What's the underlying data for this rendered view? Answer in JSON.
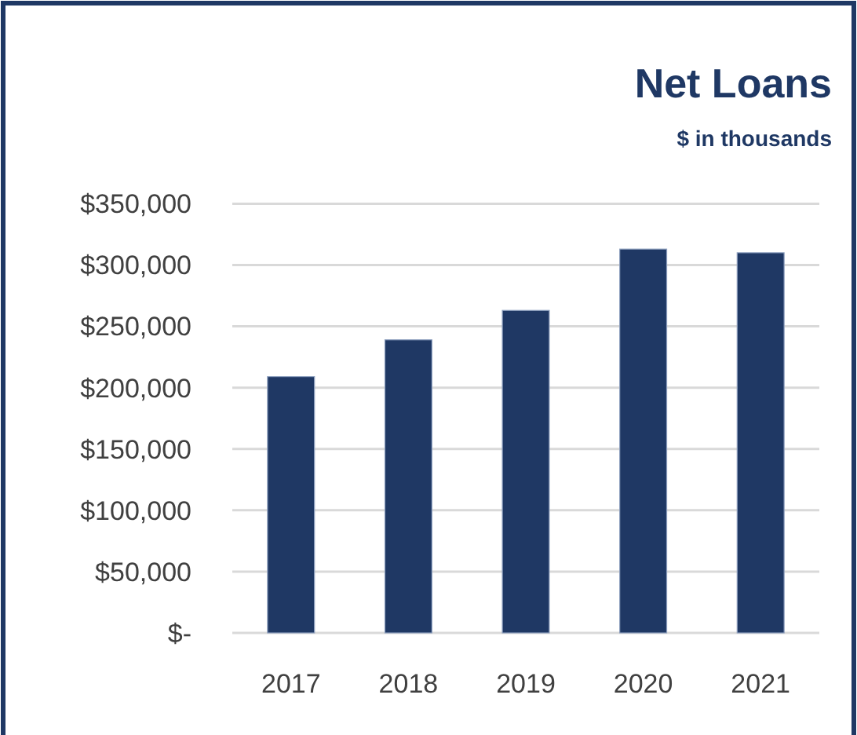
{
  "chart_data": {
    "type": "bar",
    "title": "Net Loans",
    "subtitle": "$ in thousands",
    "categories": [
      "2017",
      "2018",
      "2019",
      "2020",
      "2021"
    ],
    "values": [
      209000,
      239000,
      263000,
      313000,
      310000
    ],
    "color": "#1f3864",
    "ylim": [
      0,
      350000
    ],
    "yticks": [
      {
        "value": 0,
        "label": "$-"
      },
      {
        "value": 50000,
        "label": "$50,000"
      },
      {
        "value": 100000,
        "label": "$100,000"
      },
      {
        "value": 150000,
        "label": "$150,000"
      },
      {
        "value": 200000,
        "label": "$200,000"
      },
      {
        "value": 250000,
        "label": "$250,000"
      },
      {
        "value": 300000,
        "label": "$300,000"
      },
      {
        "value": 350000,
        "label": "$350,000"
      }
    ],
    "grid": true
  }
}
